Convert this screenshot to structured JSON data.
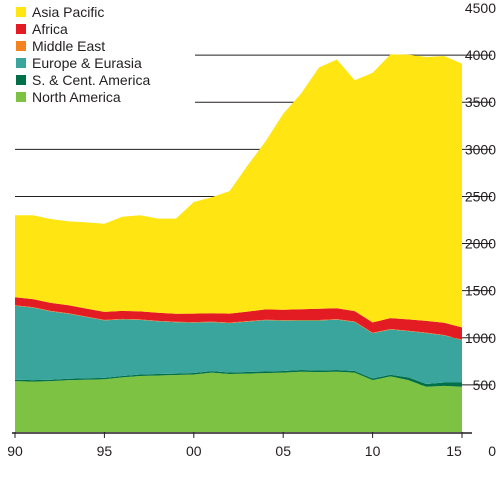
{
  "chart_data": {
    "type": "area",
    "stacked": true,
    "x": [
      1990,
      1991,
      1992,
      1993,
      1994,
      1995,
      1996,
      1997,
      1998,
      1999,
      2000,
      2001,
      2002,
      2003,
      2004,
      2005,
      2006,
      2007,
      2008,
      2009,
      2010,
      2011,
      2012,
      2013,
      2014,
      2015
    ],
    "x_tick_values": [
      1990,
      1995,
      2000,
      2005,
      2010,
      2015
    ],
    "x_tick_labels": [
      "90",
      "95",
      "00",
      "05",
      "10",
      "15"
    ],
    "y_ticks": [
      0,
      500,
      1000,
      1500,
      2000,
      2500,
      3000,
      3500,
      4000,
      4500
    ],
    "y_tick_labels": [
      "0",
      "500",
      "1000",
      "1500",
      "2000",
      "2500",
      "3000",
      "3500",
      "4000",
      "4500"
    ],
    "xlim": [
      1990,
      2015
    ],
    "ylim": [
      0,
      4500
    ],
    "gridlines": "horizontal, right side",
    "legend_position": "top-left",
    "series": [
      {
        "name": "North America",
        "color": "#7dc242",
        "values": [
          540,
          535,
          540,
          550,
          555,
          560,
          580,
          595,
          600,
          605,
          610,
          630,
          615,
          620,
          625,
          630,
          640,
          635,
          640,
          630,
          550,
          590,
          550,
          480,
          490,
          480
        ]
      },
      {
        "name": "S. & Cent. America",
        "color": "#00704a",
        "values": [
          15,
          15,
          15,
          15,
          15,
          15,
          15,
          15,
          15,
          15,
          16,
          16,
          16,
          17,
          17,
          17,
          18,
          18,
          18,
          18,
          18,
          18,
          30,
          30,
          35,
          45
        ]
      },
      {
        "name": "Europe & Eurasia",
        "color": "#3aa59c",
        "values": [
          785,
          770,
          725,
          690,
          650,
          610,
          600,
          580,
          560,
          545,
          535,
          520,
          525,
          535,
          545,
          535,
          525,
          530,
          535,
          520,
          480,
          480,
          490,
          540,
          500,
          450
        ]
      },
      {
        "name": "Middle East",
        "color": "#f58220",
        "values": [
          5,
          5,
          5,
          5,
          5,
          5,
          5,
          5,
          5,
          5,
          5,
          5,
          5,
          5,
          5,
          5,
          5,
          5,
          5,
          5,
          5,
          5,
          5,
          5,
          5,
          5
        ]
      },
      {
        "name": "Africa",
        "color": "#e31b23",
        "values": [
          85,
          85,
          85,
          85,
          85,
          85,
          85,
          85,
          85,
          85,
          90,
          90,
          95,
          100,
          110,
          110,
          115,
          120,
          115,
          110,
          110,
          115,
          120,
          125,
          130,
          130
        ]
      },
      {
        "name": "Asia Pacific",
        "color": "#ffe512",
        "values": [
          870,
          890,
          890,
          890,
          915,
          935,
          1000,
          1020,
          1000,
          1010,
          1185,
          1230,
          1300,
          1550,
          1780,
          2080,
          2290,
          2560,
          2640,
          2450,
          2650,
          2800,
          2810,
          2800,
          2830,
          2800
        ]
      }
    ]
  }
}
